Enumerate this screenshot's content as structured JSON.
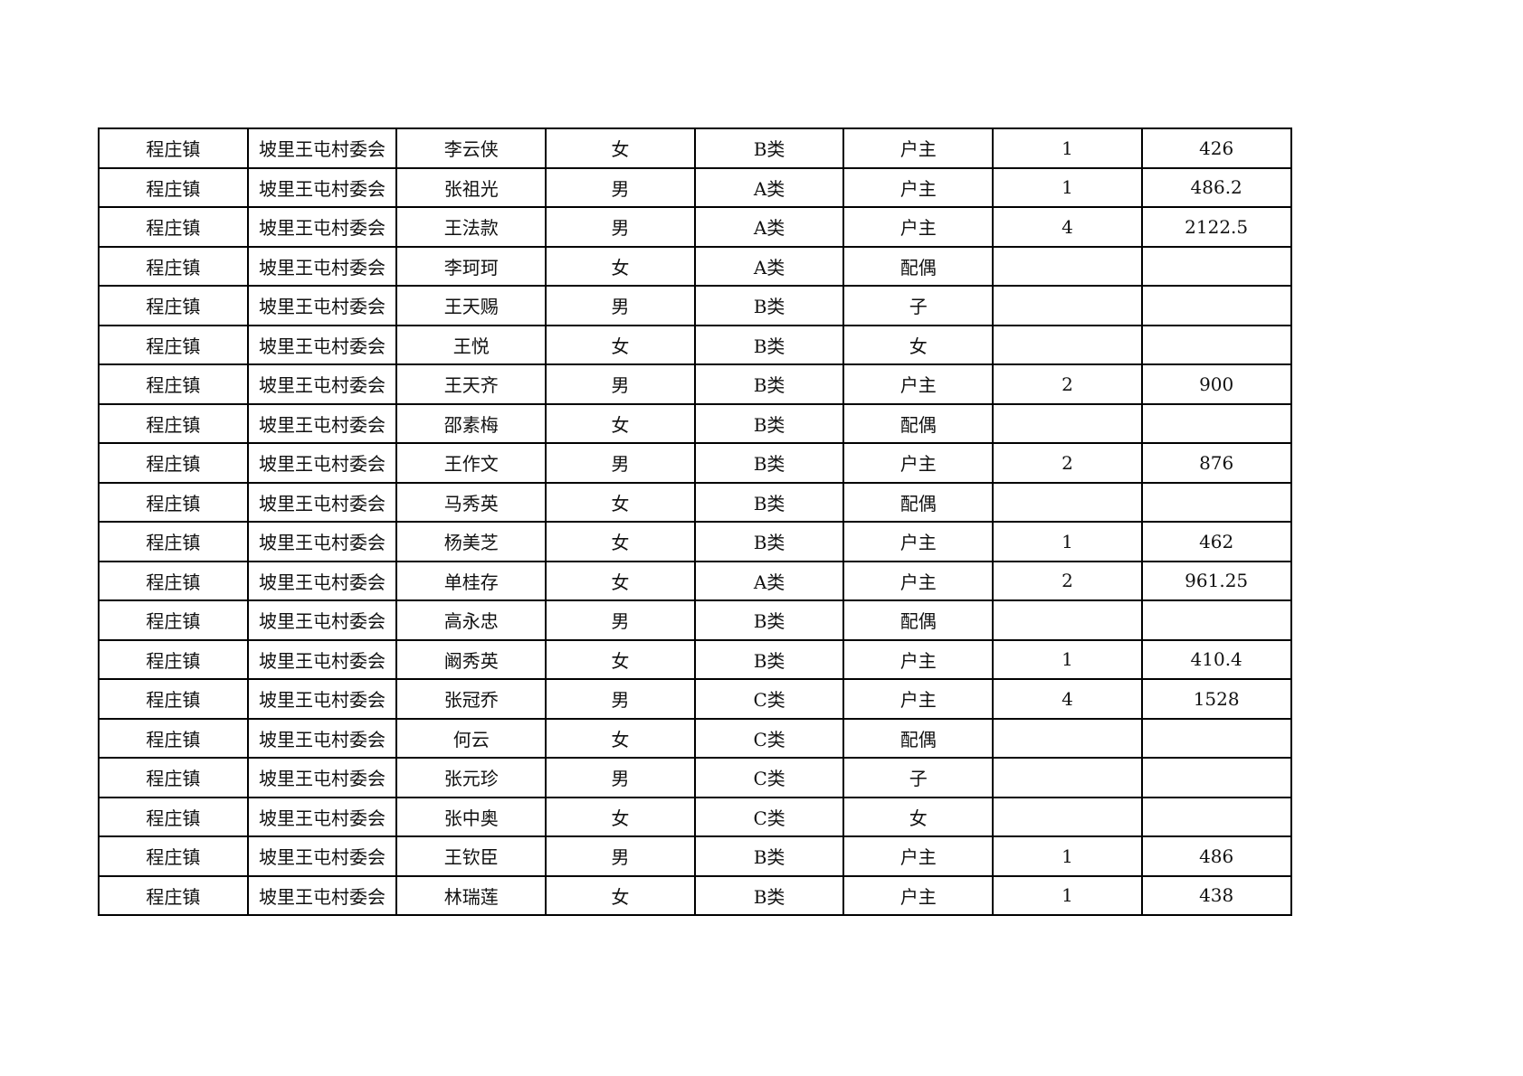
{
  "rows": [
    [
      "程庄镇",
      "坡里王屯村委会",
      "李云侠",
      "女",
      "B类",
      "户主",
      "1",
      "426"
    ],
    [
      "程庄镇",
      "坡里王屯村委会",
      "张祖光",
      "男",
      "A类",
      "户主",
      "1",
      "486.2"
    ],
    [
      "程庄镇",
      "坡里王屯村委会",
      "王法款",
      "男",
      "A类",
      "户主",
      "4",
      "2122.5"
    ],
    [
      "程庄镇",
      "坡里王屯村委会",
      "李珂珂",
      "女",
      "A类",
      "配偶",
      "",
      ""
    ],
    [
      "程庄镇",
      "坡里王屯村委会",
      "王天赐",
      "男",
      "B类",
      "子",
      "",
      ""
    ],
    [
      "程庄镇",
      "坡里王屯村委会",
      "王悦",
      "女",
      "B类",
      "女",
      "",
      ""
    ],
    [
      "程庄镇",
      "坡里王屯村委会",
      "王天齐",
      "男",
      "B类",
      "户主",
      "2",
      "900"
    ],
    [
      "程庄镇",
      "坡里王屯村委会",
      "邵素梅",
      "女",
      "B类",
      "配偶",
      "",
      ""
    ],
    [
      "程庄镇",
      "坡里王屯村委会",
      "王作文",
      "男",
      "B类",
      "户主",
      "2",
      "876"
    ],
    [
      "程庄镇",
      "坡里王屯村委会",
      "马秀英",
      "女",
      "B类",
      "配偶",
      "",
      ""
    ],
    [
      "程庄镇",
      "坡里王屯村委会",
      "杨美芝",
      "女",
      "B类",
      "户主",
      "1",
      "462"
    ],
    [
      "程庄镇",
      "坡里王屯村委会",
      "单桂存",
      "女",
      "A类",
      "户主",
      "2",
      "961.25"
    ],
    [
      "程庄镇",
      "坡里王屯村委会",
      "高永忠",
      "男",
      "B类",
      "配偶",
      "",
      ""
    ],
    [
      "程庄镇",
      "坡里王屯村委会",
      "阚秀英",
      "女",
      "B类",
      "户主",
      "1",
      "410.4"
    ],
    [
      "程庄镇",
      "坡里王屯村委会",
      "张冠乔",
      "男",
      "C类",
      "户主",
      "4",
      "1528"
    ],
    [
      "程庄镇",
      "坡里王屯村委会",
      "何云",
      "女",
      "C类",
      "配偶",
      "",
      ""
    ],
    [
      "程庄镇",
      "坡里王屯村委会",
      "张元珍",
      "男",
      "C类",
      "子",
      "",
      ""
    ],
    [
      "程庄镇",
      "坡里王屯村委会",
      "张中奥",
      "女",
      "C类",
      "女",
      "",
      ""
    ],
    [
      "程庄镇",
      "坡里王屯村委会",
      "王钦臣",
      "男",
      "B类",
      "户主",
      "1",
      "486"
    ],
    [
      "程庄镇",
      "坡里王屯村委会",
      "林瑞莲",
      "女",
      "B类",
      "户主",
      "1",
      "438"
    ]
  ]
}
